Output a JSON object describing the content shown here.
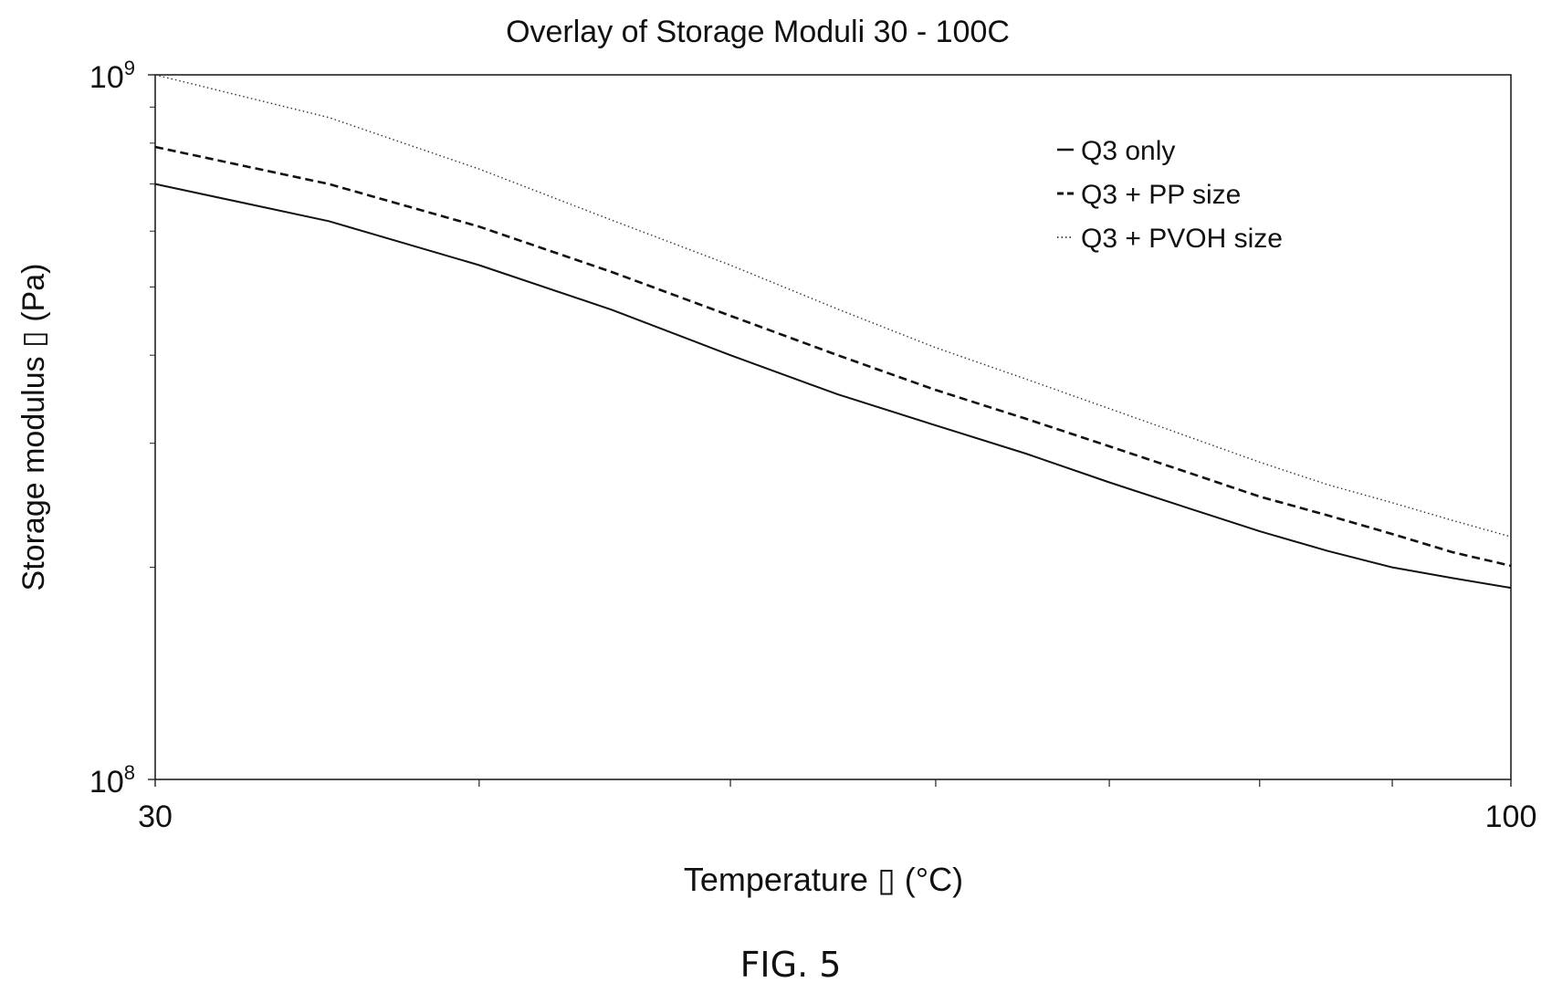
{
  "figure_caption": "FIG. 5",
  "chart_data": {
    "type": "line",
    "title": "Overlay of Storage Moduli 30 - 100C",
    "xlabel": "Temperature ▯ (°C)",
    "ylabel": "Storage modulus ▯ (Pa)",
    "xscale": "log",
    "yscale": "log",
    "xlim": [
      30,
      100
    ],
    "ylim": [
      100000000,
      1000000000
    ],
    "x_tick_labels": [
      {
        "value": 30,
        "label": "30"
      },
      {
        "value": 100,
        "label": "100"
      }
    ],
    "x_minor_ticks": [
      40,
      50,
      60,
      70,
      80,
      90
    ],
    "y_tick_labels": [
      {
        "value": 1000000000,
        "base": "10",
        "exp": "9"
      },
      {
        "value": 100000000,
        "base": "10",
        "exp": "8"
      }
    ],
    "y_minor_ticks": [
      200000000,
      300000000,
      400000000,
      500000000,
      600000000,
      700000000,
      800000000,
      900000000
    ],
    "grid": false,
    "legend_position": "top-right",
    "series": [
      {
        "name": "Q3 only",
        "style": "solid",
        "color": "#111111",
        "x": [
          30,
          35,
          40,
          45,
          50,
          55,
          60,
          65,
          70,
          75,
          80,
          85,
          90,
          95,
          100
        ],
        "y": [
          700000000,
          620000000,
          537000000,
          464000000,
          400000000,
          352000000,
          318000000,
          290000000,
          264000000,
          243000000,
          225000000,
          211000000,
          200000000,
          193000000,
          187000000
        ]
      },
      {
        "name": "Q3 + PP size",
        "style": "dashed",
        "color": "#111111",
        "x": [
          30,
          35,
          40,
          45,
          50,
          55,
          60,
          65,
          70,
          75,
          80,
          85,
          90,
          95,
          100
        ],
        "y": [
          790000000,
          700000000,
          609000000,
          525000000,
          455000000,
          400000000,
          357000000,
          325000000,
          297000000,
          273000000,
          252000000,
          237000000,
          223000000,
          210000000,
          201000000
        ]
      },
      {
        "name": "Q3 + PVOH size",
        "style": "dotted",
        "color": "#333333",
        "x": [
          30,
          35,
          40,
          45,
          50,
          55,
          60,
          65,
          70,
          75,
          80,
          85,
          90,
          95,
          100
        ],
        "y": [
          1000000000,
          870000000,
          735000000,
          622000000,
          537000000,
          465000000,
          410000000,
          370000000,
          336000000,
          307000000,
          282000000,
          262000000,
          247000000,
          233000000,
          221000000
        ]
      }
    ]
  }
}
